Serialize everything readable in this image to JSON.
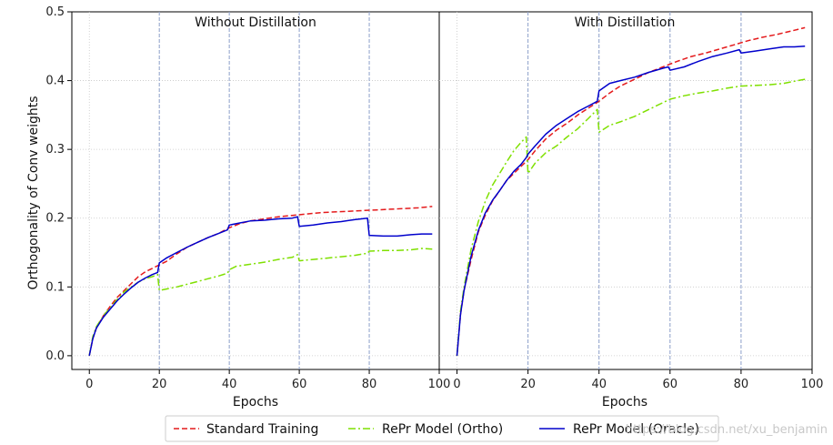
{
  "chart_data": [
    {
      "type": "line",
      "title": "Without Distillation",
      "xlabel": "Epochs",
      "ylabel": "Orthogonality of Conv weights",
      "xlim": [
        -5,
        100
      ],
      "ylim": [
        -0.02,
        0.5
      ],
      "xticks": [
        "0",
        "20",
        "40",
        "60",
        "80",
        "100"
      ],
      "yticks": [
        "0.0",
        "0.1",
        "0.2",
        "0.3",
        "0.4",
        "0.5"
      ],
      "grid": true,
      "vlines": [
        20,
        40,
        60,
        80
      ],
      "series": [
        {
          "name": "Standard Training",
          "color": "#e41a1c",
          "style": "dashed",
          "points": [
            [
              0,
              0.0
            ],
            [
              1,
              0.025
            ],
            [
              2,
              0.04
            ],
            [
              4,
              0.058
            ],
            [
              6,
              0.072
            ],
            [
              8,
              0.085
            ],
            [
              10,
              0.095
            ],
            [
              12,
              0.105
            ],
            [
              14,
              0.115
            ],
            [
              16,
              0.122
            ],
            [
              18,
              0.127
            ],
            [
              20,
              0.132
            ],
            [
              22,
              0.137
            ],
            [
              25,
              0.148
            ],
            [
              28,
              0.158
            ],
            [
              31,
              0.165
            ],
            [
              34,
              0.172
            ],
            [
              37,
              0.178
            ],
            [
              40,
              0.186
            ],
            [
              43,
              0.192
            ],
            [
              46,
              0.196
            ],
            [
              50,
              0.199
            ],
            [
              54,
              0.202
            ],
            [
              58,
              0.204
            ],
            [
              62,
              0.206
            ],
            [
              66,
              0.208
            ],
            [
              70,
              0.209
            ],
            [
              74,
              0.21
            ],
            [
              78,
              0.211
            ],
            [
              82,
              0.212
            ],
            [
              86,
              0.213
            ],
            [
              90,
              0.214
            ],
            [
              94,
              0.215
            ],
            [
              98,
              0.217
            ]
          ]
        },
        {
          "name": "RePr Model (Ortho)",
          "color": "#7fe000",
          "style": "dashdot",
          "points": [
            [
              0,
              0.0
            ],
            [
              1,
              0.028
            ],
            [
              2,
              0.042
            ],
            [
              4,
              0.058
            ],
            [
              6,
              0.07
            ],
            [
              8,
              0.082
            ],
            [
              10,
              0.093
            ],
            [
              12,
              0.1
            ],
            [
              14,
              0.107
            ],
            [
              16,
              0.112
            ],
            [
              18,
              0.115
            ],
            [
              19.5,
              0.118
            ],
            [
              20,
              0.095
            ],
            [
              22,
              0.097
            ],
            [
              25,
              0.1
            ],
            [
              28,
              0.104
            ],
            [
              31,
              0.108
            ],
            [
              34,
              0.112
            ],
            [
              37,
              0.116
            ],
            [
              39.5,
              0.12
            ],
            [
              40,
              0.125
            ],
            [
              42,
              0.13
            ],
            [
              46,
              0.133
            ],
            [
              50,
              0.136
            ],
            [
              54,
              0.14
            ],
            [
              58,
              0.143
            ],
            [
              59.5,
              0.147
            ],
            [
              60,
              0.138
            ],
            [
              64,
              0.14
            ],
            [
              68,
              0.142
            ],
            [
              72,
              0.144
            ],
            [
              76,
              0.146
            ],
            [
              79.5,
              0.149
            ],
            [
              80,
              0.152
            ],
            [
              84,
              0.153
            ],
            [
              88,
              0.153
            ],
            [
              92,
              0.154
            ],
            [
              95,
              0.156
            ],
            [
              98,
              0.155
            ]
          ]
        },
        {
          "name": "RePr Model (Oracle)",
          "color": "#0000cc",
          "style": "solid",
          "points": [
            [
              0,
              0.0
            ],
            [
              1,
              0.025
            ],
            [
              2,
              0.04
            ],
            [
              4,
              0.056
            ],
            [
              6,
              0.068
            ],
            [
              8,
              0.08
            ],
            [
              10,
              0.09
            ],
            [
              12,
              0.099
            ],
            [
              14,
              0.107
            ],
            [
              16,
              0.113
            ],
            [
              18,
              0.118
            ],
            [
              19.5,
              0.121
            ],
            [
              20,
              0.135
            ],
            [
              22,
              0.142
            ],
            [
              25,
              0.15
            ],
            [
              28,
              0.158
            ],
            [
              31,
              0.165
            ],
            [
              34,
              0.172
            ],
            [
              37,
              0.178
            ],
            [
              39.5,
              0.183
            ],
            [
              40,
              0.19
            ],
            [
              43,
              0.193
            ],
            [
              46,
              0.196
            ],
            [
              50,
              0.197
            ],
            [
              54,
              0.199
            ],
            [
              58,
              0.2
            ],
            [
              59.5,
              0.202
            ],
            [
              60,
              0.188
            ],
            [
              64,
              0.19
            ],
            [
              68,
              0.193
            ],
            [
              72,
              0.195
            ],
            [
              76,
              0.198
            ],
            [
              79.5,
              0.2
            ],
            [
              80,
              0.175
            ],
            [
              84,
              0.174
            ],
            [
              88,
              0.174
            ],
            [
              92,
              0.176
            ],
            [
              95,
              0.177
            ],
            [
              98,
              0.177
            ]
          ]
        }
      ]
    },
    {
      "type": "line",
      "title": "With Distillation",
      "xlabel": "Epochs",
      "ylabel": "",
      "xlim": [
        -5,
        100
      ],
      "ylim": [
        -0.02,
        0.5
      ],
      "xticks": [
        "0",
        "20",
        "40",
        "60",
        "80",
        "100"
      ],
      "yticks": [],
      "grid": true,
      "vlines": [
        20,
        40,
        60,
        80
      ],
      "series": [
        {
          "name": "Standard Training",
          "color": "#e41a1c",
          "style": "dashed",
          "points": [
            [
              0,
              0.0
            ],
            [
              1,
              0.06
            ],
            [
              2,
              0.095
            ],
            [
              4,
              0.14
            ],
            [
              6,
              0.18
            ],
            [
              8,
              0.205
            ],
            [
              10,
              0.225
            ],
            [
              12,
              0.24
            ],
            [
              14,
              0.255
            ],
            [
              16,
              0.265
            ],
            [
              18,
              0.275
            ],
            [
              20,
              0.285
            ],
            [
              22,
              0.298
            ],
            [
              25,
              0.315
            ],
            [
              28,
              0.328
            ],
            [
              31,
              0.338
            ],
            [
              34,
              0.35
            ],
            [
              37,
              0.36
            ],
            [
              40,
              0.37
            ],
            [
              43,
              0.382
            ],
            [
              46,
              0.392
            ],
            [
              50,
              0.402
            ],
            [
              54,
              0.412
            ],
            [
              58,
              0.42
            ],
            [
              62,
              0.428
            ],
            [
              66,
              0.435
            ],
            [
              70,
              0.44
            ],
            [
              74,
              0.446
            ],
            [
              78,
              0.452
            ],
            [
              82,
              0.458
            ],
            [
              86,
              0.463
            ],
            [
              90,
              0.467
            ],
            [
              94,
              0.472
            ],
            [
              98,
              0.477
            ]
          ]
        },
        {
          "name": "RePr Model (Ortho)",
          "color": "#7fe000",
          "style": "dashdot",
          "points": [
            [
              0,
              0.0
            ],
            [
              1,
              0.065
            ],
            [
              2,
              0.1
            ],
            [
              4,
              0.155
            ],
            [
              6,
              0.195
            ],
            [
              8,
              0.225
            ],
            [
              10,
              0.248
            ],
            [
              12,
              0.265
            ],
            [
              14,
              0.282
            ],
            [
              16,
              0.298
            ],
            [
              18,
              0.31
            ],
            [
              19.5,
              0.318
            ],
            [
              20,
              0.265
            ],
            [
              22,
              0.28
            ],
            [
              25,
              0.295
            ],
            [
              28,
              0.305
            ],
            [
              31,
              0.318
            ],
            [
              34,
              0.33
            ],
            [
              37,
              0.345
            ],
            [
              39.5,
              0.358
            ],
            [
              40,
              0.325
            ],
            [
              43,
              0.335
            ],
            [
              46,
              0.34
            ],
            [
              50,
              0.348
            ],
            [
              54,
              0.358
            ],
            [
              58,
              0.368
            ],
            [
              60,
              0.373
            ],
            [
              64,
              0.378
            ],
            [
              68,
              0.382
            ],
            [
              72,
              0.385
            ],
            [
              76,
              0.389
            ],
            [
              80,
              0.392
            ],
            [
              84,
              0.393
            ],
            [
              88,
              0.394
            ],
            [
              92,
              0.396
            ],
            [
              95,
              0.399
            ],
            [
              98,
              0.402
            ]
          ]
        },
        {
          "name": "RePr Model (Oracle)",
          "color": "#0000cc",
          "style": "solid",
          "points": [
            [
              0,
              0.0
            ],
            [
              1,
              0.06
            ],
            [
              2,
              0.095
            ],
            [
              4,
              0.145
            ],
            [
              6,
              0.182
            ],
            [
              8,
              0.208
            ],
            [
              10,
              0.226
            ],
            [
              12,
              0.24
            ],
            [
              14,
              0.255
            ],
            [
              16,
              0.268
            ],
            [
              18,
              0.278
            ],
            [
              19.5,
              0.288
            ],
            [
              20,
              0.293
            ],
            [
              22,
              0.305
            ],
            [
              25,
              0.322
            ],
            [
              28,
              0.335
            ],
            [
              31,
              0.345
            ],
            [
              34,
              0.355
            ],
            [
              37,
              0.363
            ],
            [
              39.5,
              0.37
            ],
            [
              40,
              0.385
            ],
            [
              43,
              0.396
            ],
            [
              46,
              0.4
            ],
            [
              50,
              0.405
            ],
            [
              54,
              0.412
            ],
            [
              58,
              0.418
            ],
            [
              59.5,
              0.42
            ],
            [
              60,
              0.415
            ],
            [
              64,
              0.42
            ],
            [
              68,
              0.428
            ],
            [
              72,
              0.435
            ],
            [
              76,
              0.44
            ],
            [
              79.5,
              0.445
            ],
            [
              80,
              0.44
            ],
            [
              84,
              0.443
            ],
            [
              88,
              0.446
            ],
            [
              92,
              0.449
            ],
            [
              95,
              0.449
            ],
            [
              98,
              0.45
            ]
          ]
        }
      ]
    }
  ],
  "legend": {
    "placement": "bottom-center",
    "entries": [
      {
        "label": "Standard Training",
        "color": "#e41a1c",
        "style": "dashed"
      },
      {
        "label": "RePr Model (Ortho)",
        "color": "#7fe000",
        "style": "dashdot"
      },
      {
        "label": "RePr Model (Oracle)",
        "color": "#0000cc",
        "style": "solid"
      }
    ]
  },
  "watermark": "https://blog.csdn.net/xu_benjamin"
}
